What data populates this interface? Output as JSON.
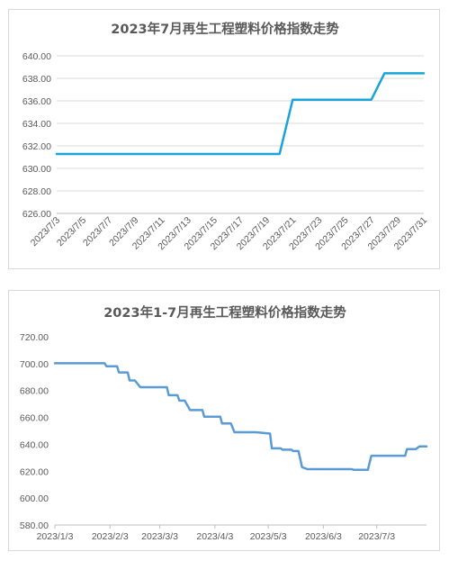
{
  "chart_data": [
    {
      "type": "line",
      "title": "2023年7月再生工程塑料价格指数走势",
      "x": [
        "2023/7/3",
        "2023/7/4",
        "2023/7/5",
        "2023/7/6",
        "2023/7/7",
        "2023/7/8",
        "2023/7/9",
        "2023/7/10",
        "2023/7/11",
        "2023/7/12",
        "2023/7/13",
        "2023/7/14",
        "2023/7/15",
        "2023/7/16",
        "2023/7/17",
        "2023/7/18",
        "2023/7/19",
        "2023/7/20",
        "2023/7/21",
        "2023/7/22",
        "2023/7/23",
        "2023/7/24",
        "2023/7/25",
        "2023/7/26",
        "2023/7/27",
        "2023/7/28",
        "2023/7/29",
        "2023/7/30",
        "2023/7/31"
      ],
      "x_tick_labels": [
        "2023/7/3",
        "2023/7/5",
        "2023/7/7",
        "2023/7/9",
        "2023/7/11",
        "2023/7/13",
        "2023/7/15",
        "2023/7/17",
        "2023/7/19",
        "2023/7/21",
        "2023/7/23",
        "2023/7/25",
        "2023/7/27",
        "2023/7/29",
        "2023/7/31"
      ],
      "y_tick_labels": [
        "626.00",
        "628.00",
        "630.00",
        "632.00",
        "634.00",
        "636.00",
        "638.00",
        "640.00"
      ],
      "series": [
        {
          "values": [
            631.28,
            631.28,
            631.28,
            631.28,
            631.28,
            631.28,
            631.28,
            631.28,
            631.28,
            631.28,
            631.28,
            631.28,
            631.28,
            631.28,
            631.28,
            631.28,
            631.28,
            631.28,
            636.1,
            636.1,
            636.1,
            636.1,
            636.1,
            636.1,
            636.1,
            638.45,
            638.45,
            638.45,
            638.45
          ],
          "color": "#1aa3d9"
        }
      ],
      "ylim": [
        626,
        640
      ],
      "grid": true,
      "legend": "none"
    },
    {
      "type": "line",
      "title": "2023年1-7月再生工程塑料价格指数走势",
      "x_tick_labels": [
        "2023/1/3",
        "2023/2/3",
        "2023/3/3",
        "2023/4/3",
        "2023/5/3",
        "2023/6/3",
        "2023/7/3"
      ],
      "y_tick_labels": [
        "580.00",
        "600.00",
        "620.00",
        "640.00",
        "660.00",
        "680.00",
        "700.00",
        "720.00"
      ],
      "x_range": [
        "2023/1/3",
        "2023/7/31"
      ],
      "series": [
        {
          "color": "#5b9bd5",
          "points": [
            [
              "2023/1/3",
              700.3
            ],
            [
              "2023/1/31",
              700.3
            ],
            [
              "2023/2/1",
              698
            ],
            [
              "2023/2/7",
              698
            ],
            [
              "2023/2/8",
              693.5
            ],
            [
              "2023/2/13",
              693.5
            ],
            [
              "2023/2/14",
              687.5
            ],
            [
              "2023/2/17",
              687.5
            ],
            [
              "2023/2/20",
              682.5
            ],
            [
              "2023/3/7",
              682.5
            ],
            [
              "2023/3/8",
              676.5
            ],
            [
              "2023/3/13",
              676.5
            ],
            [
              "2023/3/14",
              672.5
            ],
            [
              "2023/3/17",
              672.5
            ],
            [
              "2023/3/20",
              665.5
            ],
            [
              "2023/3/27",
              665.5
            ],
            [
              "2023/3/28",
              660.5
            ],
            [
              "2023/4/6",
              660.5
            ],
            [
              "2023/4/7",
              655.5
            ],
            [
              "2023/4/12",
              655.5
            ],
            [
              "2023/4/14",
              649
            ],
            [
              "2023/4/26",
              649
            ],
            [
              "2023/5/4",
              648
            ],
            [
              "2023/5/5",
              637
            ],
            [
              "2023/5/10",
              637
            ],
            [
              "2023/5/11",
              636
            ],
            [
              "2023/5/16",
              636
            ],
            [
              "2023/5/17",
              635
            ],
            [
              "2023/5/20",
              635
            ],
            [
              "2023/5/22",
              623
            ],
            [
              "2023/5/25",
              621.5
            ],
            [
              "2023/6/19",
              621.5
            ],
            [
              "2023/6/20",
              621
            ],
            [
              "2023/6/28",
              621
            ],
            [
              "2023/6/30",
              631.5
            ],
            [
              "2023/7/19",
              631.5
            ],
            [
              "2023/7/20",
              636.5
            ],
            [
              "2023/7/25",
              636.5
            ],
            [
              "2023/7/27",
              638.5
            ],
            [
              "2023/7/31",
              638.5
            ]
          ]
        }
      ],
      "ylim": [
        580,
        720
      ],
      "grid": false,
      "legend": "none"
    }
  ]
}
